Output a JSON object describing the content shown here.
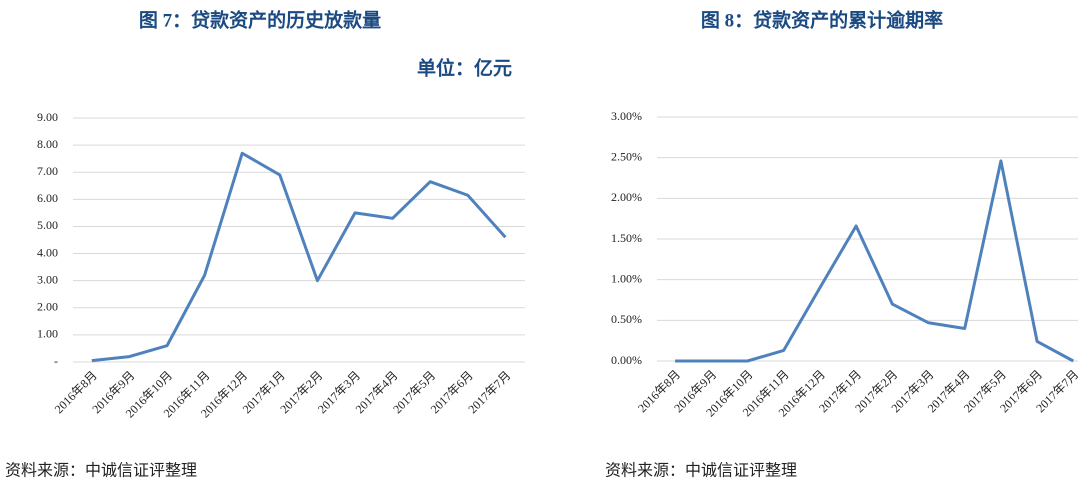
{
  "chart_data": [
    {
      "type": "line",
      "title": "图 7：贷款资产的历史放款量",
      "unit": "单位：亿元",
      "source": "资料来源：中诚信证评整理",
      "categories": [
        "2016年8月",
        "2016年9月",
        "2016年10月",
        "2016年11月",
        "2016年12月",
        "2017年1月",
        "2017年2月",
        "2017年3月",
        "2017年4月",
        "2017年5月",
        "2017年6月",
        "2017年7月"
      ],
      "series": [
        {
          "color": "#4f81bd",
          "values": [
            0.05,
            0.2,
            0.6,
            3.2,
            7.7,
            6.9,
            3.0,
            5.5,
            5.3,
            6.65,
            6.15,
            4.6
          ]
        }
      ],
      "ylim": [
        0,
        9
      ],
      "yticks": [
        {
          "value": 0,
          "label": "-"
        },
        {
          "value": 1,
          "label": "1.00"
        },
        {
          "value": 2,
          "label": "2.00"
        },
        {
          "value": 3,
          "label": "3.00"
        },
        {
          "value": 4,
          "label": "4.00"
        },
        {
          "value": 5,
          "label": "5.00"
        },
        {
          "value": 6,
          "label": "6.00"
        },
        {
          "value": 7,
          "label": "7.00"
        },
        {
          "value": 8,
          "label": "8.00"
        },
        {
          "value": 9,
          "label": "9.00"
        }
      ],
      "grid": true
    },
    {
      "type": "line",
      "title": "图 8：贷款资产的累计逾期率",
      "source": "资料来源：中诚信证评整理",
      "categories": [
        "2016年8月",
        "2016年9月",
        "2016年10月",
        "2016年11月",
        "2016年12月",
        "2017年1月",
        "2017年2月",
        "2017年3月",
        "2017年4月",
        "2017年5月",
        "2017年6月",
        "2017年7月"
      ],
      "series": [
        {
          "color": "#4f81bd",
          "values": [
            0,
            0,
            0,
            0.13,
            0.9,
            1.66,
            0.7,
            0.47,
            0.4,
            2.46,
            0.24,
            0
          ]
        }
      ],
      "ylim": [
        0,
        3
      ],
      "yticks": [
        {
          "value": 0,
          "label": "0.00%"
        },
        {
          "value": 0.5,
          "label": "0.50%"
        },
        {
          "value": 1,
          "label": "1.00%"
        },
        {
          "value": 1.5,
          "label": "1.50%"
        },
        {
          "value": 2,
          "label": "2.00%"
        },
        {
          "value": 2.5,
          "label": "2.50%"
        },
        {
          "value": 3,
          "label": "3.00%"
        }
      ],
      "grid": true
    }
  ]
}
